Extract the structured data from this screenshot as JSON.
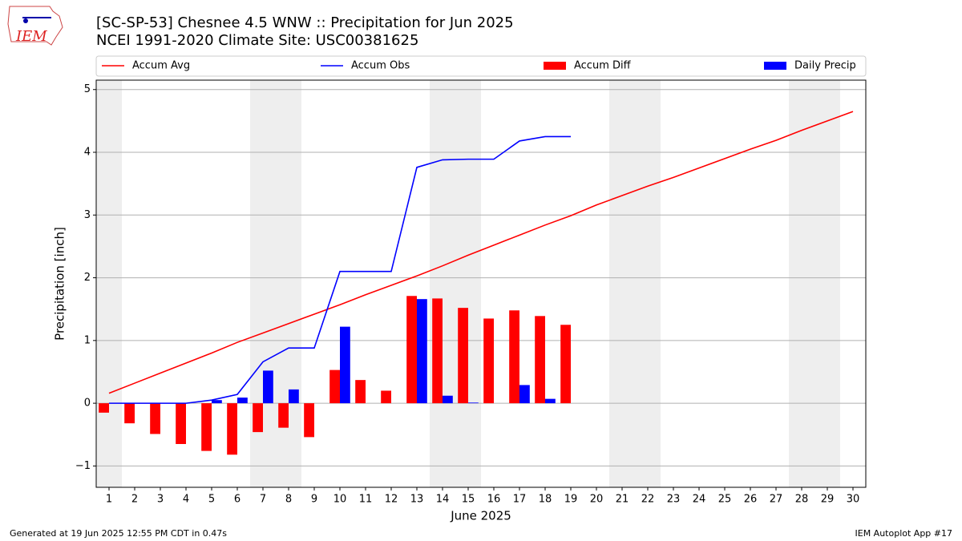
{
  "chart_data": {
    "type": "line",
    "title": "[SC-SP-53] Chesnee 4.5 WNW :: Precipitation for Jun 2025",
    "subtitle": "NCEI 1991-2020 Climate Site: USC00381625",
    "logo_text": "IEM",
    "x_label": "June 2025",
    "y_label": "Precipitation [inch]",
    "footer_left": "Generated at 19 Jun 2025 12:55 PM CDT in 0.47s",
    "footer_right": "IEM Autoplot App #17",
    "x": [
      1,
      2,
      3,
      4,
      5,
      6,
      7,
      8,
      9,
      10,
      11,
      12,
      13,
      14,
      15,
      16,
      17,
      18,
      19,
      20,
      21,
      22,
      23,
      24,
      25,
      26,
      27,
      28,
      29,
      30
    ],
    "shaded_days": [
      1,
      7,
      8,
      14,
      15,
      21,
      22,
      28,
      29
    ],
    "series": [
      {
        "name": "Accum Avg",
        "type": "line",
        "color": "#ff0000",
        "values": [
          0.16,
          0.32,
          0.48,
          0.64,
          0.8,
          0.97,
          1.12,
          1.27,
          1.42,
          1.57,
          1.73,
          1.88,
          2.03,
          2.19,
          2.36,
          2.52,
          2.68,
          2.84,
          2.99,
          3.16,
          3.31,
          3.46,
          3.6,
          3.75,
          3.9,
          4.05,
          4.19,
          4.35,
          4.5,
          4.65
        ]
      },
      {
        "name": "Accum Obs",
        "type": "line",
        "color": "#0000ff",
        "values": [
          0,
          0,
          0,
          0,
          0.05,
          0.14,
          0.66,
          0.88,
          0.88,
          2.1,
          2.1,
          2.1,
          3.76,
          3.88,
          3.89,
          3.89,
          4.18,
          4.25,
          4.25,
          null,
          null,
          null,
          null,
          null,
          null,
          null,
          null,
          null,
          null,
          null
        ]
      },
      {
        "name": "Accum Diff",
        "type": "bar",
        "offset": -1,
        "color": "#ff0000",
        "values": [
          -0.15,
          -0.32,
          -0.49,
          -0.65,
          -0.76,
          -0.82,
          -0.46,
          -0.39,
          -0.54,
          0.53,
          0.37,
          0.2,
          1.71,
          1.67,
          1.52,
          1.35,
          1.48,
          1.39,
          1.25,
          null,
          null,
          null,
          null,
          null,
          null,
          null,
          null,
          null,
          null,
          null
        ]
      },
      {
        "name": "Daily Precip",
        "type": "bar",
        "offset": 1,
        "color": "#0000ff",
        "values": [
          0,
          0,
          0,
          0,
          0.05,
          0.09,
          0.52,
          0.22,
          0,
          1.22,
          0,
          0,
          1.66,
          0.12,
          0.01,
          0,
          0.29,
          0.07,
          0,
          null,
          null,
          null,
          null,
          null,
          null,
          null,
          null,
          null,
          null,
          null
        ]
      }
    ],
    "xlim": [
      0.5,
      30.5
    ],
    "xticks": [
      1,
      2,
      3,
      4,
      5,
      6,
      7,
      8,
      9,
      10,
      11,
      12,
      13,
      14,
      15,
      16,
      17,
      18,
      19,
      20,
      21,
      22,
      23,
      24,
      25,
      26,
      27,
      28,
      29,
      30
    ],
    "ylim": [
      -1.34,
      5.15
    ],
    "yticks": [
      {
        "value": -1,
        "label": "−1"
      },
      0,
      1,
      2,
      3,
      4,
      5
    ],
    "grid": true,
    "legend": "top"
  }
}
